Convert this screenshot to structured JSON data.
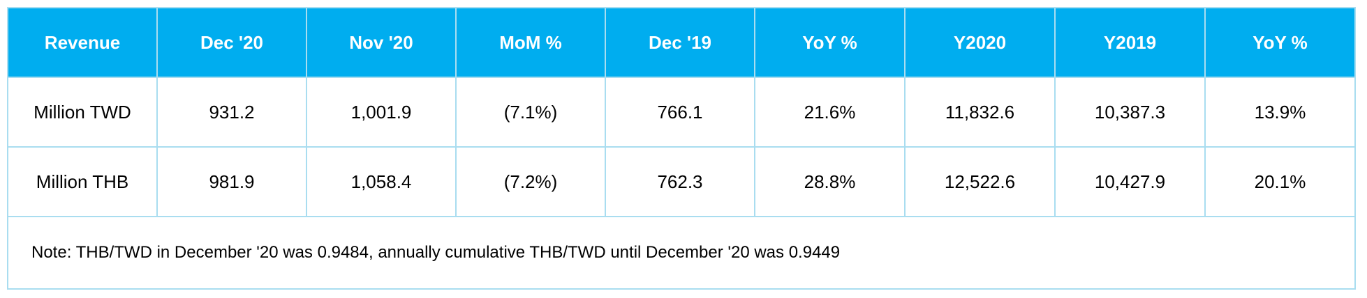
{
  "table": {
    "headers": [
      "Revenue",
      "Dec '20",
      "Nov '20",
      "MoM %",
      "Dec '19",
      "YoY %",
      "Y2020",
      "Y2019",
      "YoY %"
    ],
    "rows": [
      [
        "Million TWD",
        "931.2",
        "1,001.9",
        "(7.1%)",
        "766.1",
        "21.6%",
        "11,832.6",
        "10,387.3",
        "13.9%"
      ],
      [
        "Million THB",
        "981.9",
        "1,058.4",
        "(7.2%)",
        "762.3",
        "28.8%",
        "12,522.6",
        "10,427.9",
        "20.1%"
      ]
    ],
    "note": "Note: THB/TWD in December '20 was 0.9484, annually cumulative THB/TWD until December '20 was 0.9449"
  },
  "colors": {
    "header_bg": "#00adef",
    "header_text": "#ffffff",
    "border": "#a9ddf0"
  }
}
